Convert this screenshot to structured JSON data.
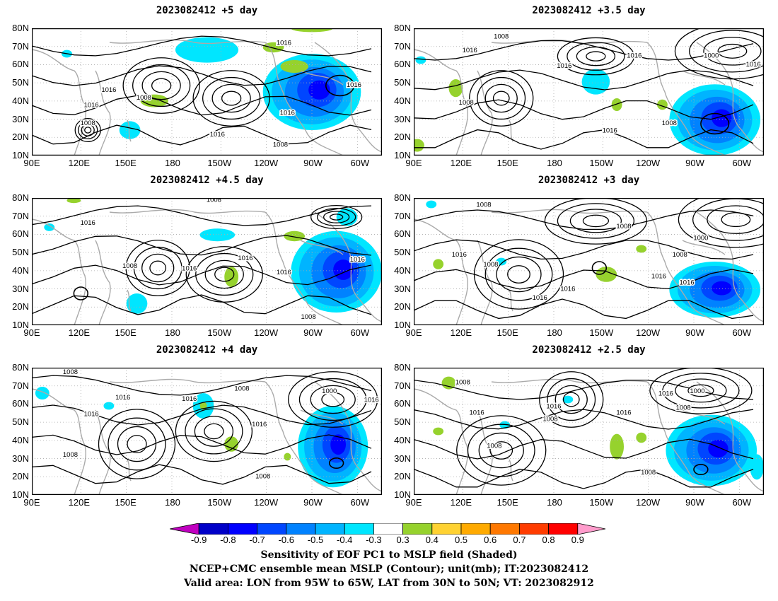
{
  "panels": [
    {
      "title": "2023082412 +5 day"
    },
    {
      "title": "2023082412 +3.5 day"
    },
    {
      "title": "2023082412 +4.5 day"
    },
    {
      "title": "2023082412 +3 day"
    },
    {
      "title": "2023082412 +4 day"
    },
    {
      "title": "2023082412 +2.5 day"
    }
  ],
  "lat_labels": [
    "80N",
    "70N",
    "60N",
    "50N",
    "40N",
    "30N",
    "20N",
    "10N"
  ],
  "lon_labels": [
    "90E",
    "120E",
    "150E",
    "180",
    "150W",
    "120W",
    "90W",
    "60W"
  ],
  "isobar_labels": [
    "1000",
    "1008",
    "1016"
  ],
  "colorbar": {
    "labels": [
      "-0.9",
      "-0.8",
      "-0.7",
      "-0.6",
      "-0.5",
      "-0.4",
      "-0.3",
      "0.3",
      "0.4",
      "0.5",
      "0.6",
      "0.7",
      "0.8",
      "0.9"
    ],
    "colors": [
      "#c000c0",
      "#0000c8",
      "#0000ff",
      "#0046ff",
      "#0082ff",
      "#00b4ff",
      "#00e6ff",
      "#ffffff",
      "#96d22d",
      "#ffd232",
      "#ffaa00",
      "#ff7800",
      "#ff3c00",
      "#ff0000",
      "#ff9ccc"
    ]
  },
  "caption": {
    "line1": "Sensitivity of EOF PC1 to MSLP field (Shaded)",
    "line2": "NCEP+CMC ensemble mean MSLP (Contour); unit(mb); IT:2023082412",
    "line3": "Valid area: LON from 95W to 65W, LAT from 30N to 50N; VT: 2023082912"
  }
}
